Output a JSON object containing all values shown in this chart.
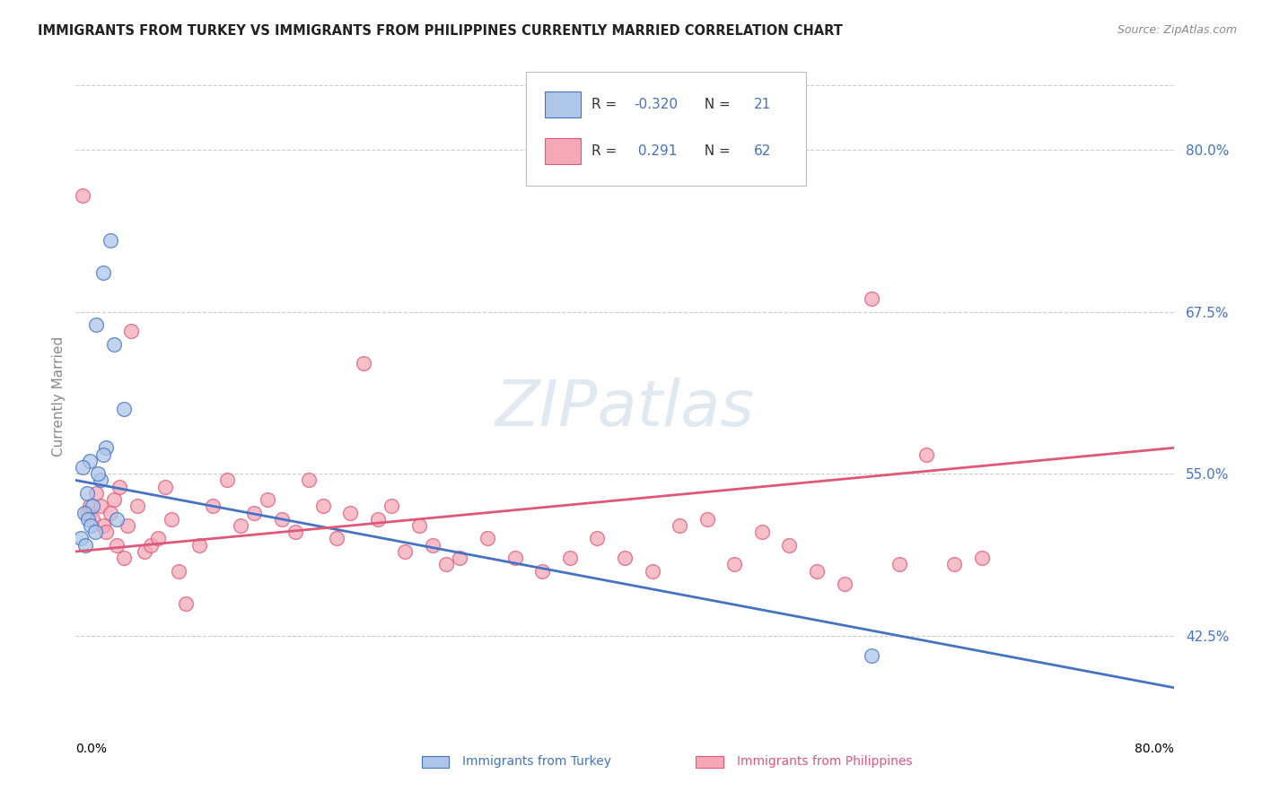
{
  "title": "IMMIGRANTS FROM TURKEY VS IMMIGRANTS FROM PHILIPPINES CURRENTLY MARRIED CORRELATION CHART",
  "source": "Source: ZipAtlas.com",
  "ylabel": "Currently Married",
  "yticks": [
    42.5,
    55.0,
    67.5,
    80.0
  ],
  "ytick_labels": [
    "42.5%",
    "55.0%",
    "67.5%",
    "80.0%"
  ],
  "xmin": 0.0,
  "xmax": 80.0,
  "ymin": 36.0,
  "ymax": 86.0,
  "turkey_R": -0.32,
  "turkey_N": 21,
  "philippines_R": 0.291,
  "philippines_N": 62,
  "turkey_color": "#aec6e8",
  "turkey_line_color": "#4472c4",
  "philippines_color": "#f4a8b8",
  "philippines_line_color": "#e05878",
  "turkey_line_start_y": 54.5,
  "turkey_line_end_y": 38.5,
  "philippines_line_start_y": 49.0,
  "philippines_line_end_y": 57.0,
  "turkey_scatter_x": [
    1.0,
    2.0,
    2.5,
    1.5,
    2.8,
    3.5,
    0.5,
    0.8,
    1.2,
    1.8,
    2.2,
    0.6,
    0.9,
    1.1,
    1.4,
    1.6,
    2.0,
    3.0,
    0.4,
    0.7,
    58.0
  ],
  "turkey_scatter_y": [
    56.0,
    70.5,
    73.0,
    66.5,
    65.0,
    60.0,
    55.5,
    53.5,
    52.5,
    54.5,
    57.0,
    52.0,
    51.5,
    51.0,
    50.5,
    55.0,
    56.5,
    51.5,
    50.0,
    49.5,
    41.0
  ],
  "philippines_scatter_x": [
    0.5,
    0.8,
    1.0,
    1.2,
    1.5,
    1.8,
    2.0,
    2.2,
    2.5,
    2.8,
    3.0,
    3.2,
    3.5,
    3.8,
    4.0,
    4.5,
    5.0,
    5.5,
    6.0,
    6.5,
    7.0,
    7.5,
    8.0,
    9.0,
    10.0,
    11.0,
    12.0,
    13.0,
    14.0,
    15.0,
    16.0,
    17.0,
    18.0,
    19.0,
    20.0,
    21.0,
    22.0,
    23.0,
    24.0,
    25.0,
    26.0,
    27.0,
    28.0,
    30.0,
    32.0,
    34.0,
    36.0,
    38.0,
    40.0,
    42.0,
    44.0,
    46.0,
    48.0,
    50.0,
    52.0,
    54.0,
    56.0,
    58.0,
    60.0,
    62.0,
    64.0,
    66.0
  ],
  "philippines_scatter_y": [
    76.5,
    52.0,
    52.5,
    51.5,
    53.5,
    52.5,
    51.0,
    50.5,
    52.0,
    53.0,
    49.5,
    54.0,
    48.5,
    51.0,
    66.0,
    52.5,
    49.0,
    49.5,
    50.0,
    54.0,
    51.5,
    47.5,
    45.0,
    49.5,
    52.5,
    54.5,
    51.0,
    52.0,
    53.0,
    51.5,
    50.5,
    54.5,
    52.5,
    50.0,
    52.0,
    63.5,
    51.5,
    52.5,
    49.0,
    51.0,
    49.5,
    48.0,
    48.5,
    50.0,
    48.5,
    47.5,
    48.5,
    50.0,
    48.5,
    47.5,
    51.0,
    51.5,
    48.0,
    50.5,
    49.5,
    47.5,
    46.5,
    68.5,
    48.0,
    56.5,
    48.0,
    48.5
  ]
}
